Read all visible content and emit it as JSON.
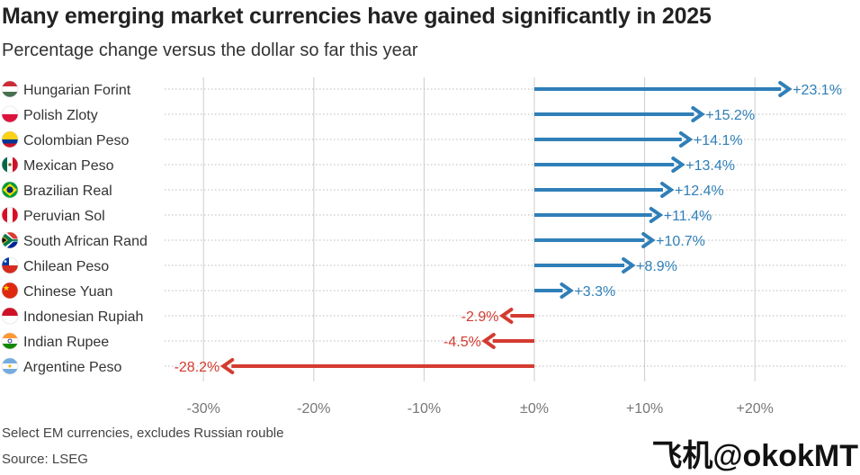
{
  "chart_data": {
    "type": "bar",
    "orientation": "horizontal",
    "title": "Many emerging market currencies have gained significantly in 2025",
    "subtitle": "Percentage change versus the dollar so far this year",
    "categories": [
      "Hungarian Forint",
      "Polish Zloty",
      "Colombian Peso",
      "Mexican Peso",
      "Brazilian Real",
      "Peruvian Sol",
      "South African Rand",
      "Chilean Peso",
      "Chinese Yuan",
      "Indonesian Rupiah",
      "Indian Rupee",
      "Argentine Peso"
    ],
    "values": [
      23.1,
      15.2,
      14.1,
      13.4,
      12.4,
      11.4,
      10.7,
      8.9,
      3.3,
      -2.9,
      -4.5,
      -28.2
    ],
    "value_labels": [
      "+23.1%",
      "+15.2%",
      "+14.1%",
      "+13.4%",
      "+12.4%",
      "+11.4%",
      "+10.7%",
      "+8.9%",
      "+3.3%",
      "-2.9%",
      "-4.5%",
      "-28.2%"
    ],
    "flags": [
      "hungary-flag",
      "poland-flag",
      "colombia-flag",
      "mexico-flag",
      "brazil-flag",
      "peru-flag",
      "south-africa-flag",
      "chile-flag",
      "china-flag",
      "indonesia-flag",
      "india-flag",
      "argentina-flag"
    ],
    "xlim": [
      -33,
      28
    ],
    "xticks": [
      -30,
      -20,
      -10,
      0,
      10,
      20
    ],
    "xtick_labels": [
      "-30%",
      "-20%",
      "-10%",
      "±0%",
      "+10%",
      "+20%"
    ],
    "grid": true,
    "colors": {
      "positive": "#2f7fb8",
      "negative": "#d43b30",
      "grid": "#cccccc",
      "row_line": "#bbbbbb"
    }
  },
  "footer": {
    "note": "Select EM currencies, excludes Russian rouble",
    "source": "Source: LSEG"
  },
  "watermark": "飞机@okokMT"
}
